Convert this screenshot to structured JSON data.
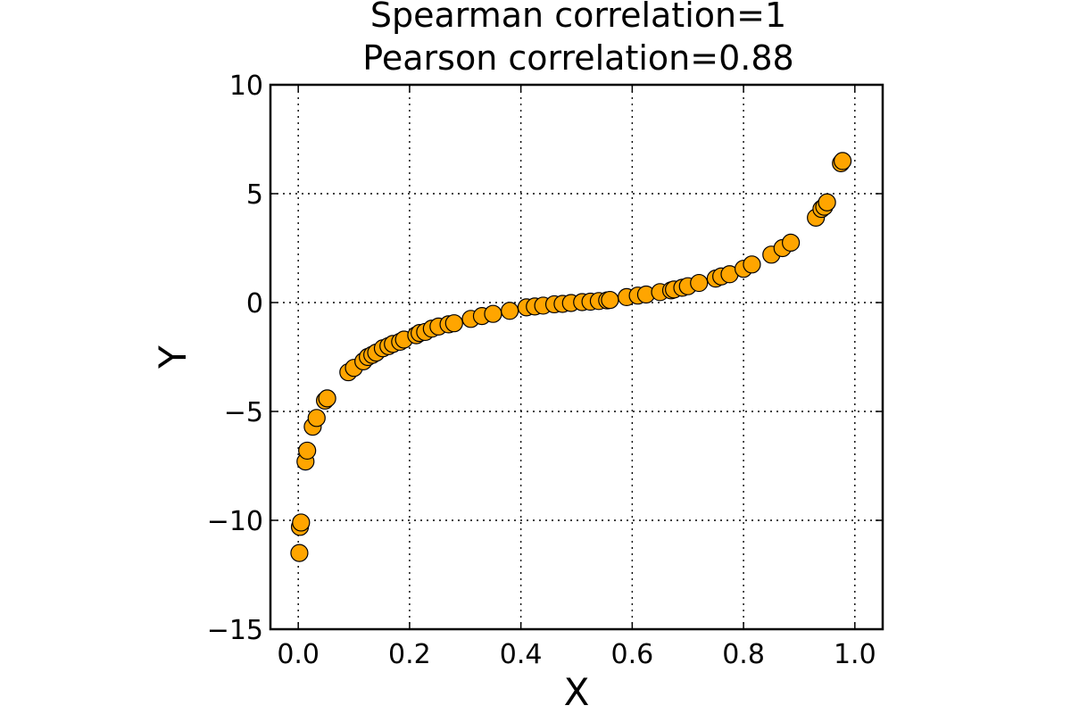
{
  "chart_data": {
    "type": "scatter",
    "title_line1": "Spearman correlation=1",
    "title_line2": "Pearson correlation=0.88",
    "xlabel": "X",
    "ylabel": "Y",
    "xlim": [
      -0.05,
      1.05
    ],
    "ylim": [
      -15,
      10
    ],
    "xticks": [
      0.0,
      0.2,
      0.4,
      0.6,
      0.8,
      1.0
    ],
    "xtick_labels": [
      "0.0",
      "0.2",
      "0.4",
      "0.6",
      "0.8",
      "1.0"
    ],
    "yticks": [
      10,
      5,
      0,
      -5,
      -10,
      -15
    ],
    "ytick_labels": [
      "10",
      "5",
      "0",
      "−5",
      "−10",
      "−15"
    ],
    "grid": true,
    "marker_color": "#ffa500",
    "edge_color": "#000000",
    "x": [
      0.002,
      0.003,
      0.005,
      0.013,
      0.016,
      0.026,
      0.033,
      0.048,
      0.052,
      0.09,
      0.1,
      0.117,
      0.125,
      0.133,
      0.14,
      0.152,
      0.162,
      0.17,
      0.183,
      0.19,
      0.212,
      0.218,
      0.228,
      0.24,
      0.252,
      0.27,
      0.28,
      0.31,
      0.33,
      0.35,
      0.38,
      0.41,
      0.425,
      0.44,
      0.46,
      0.475,
      0.49,
      0.51,
      0.525,
      0.54,
      0.555,
      0.56,
      0.59,
      0.61,
      0.625,
      0.65,
      0.67,
      0.675,
      0.69,
      0.7,
      0.72,
      0.75,
      0.76,
      0.775,
      0.8,
      0.815,
      0.85,
      0.87,
      0.885,
      0.93,
      0.94,
      0.945,
      0.95,
      0.975,
      0.978
    ],
    "y": [
      -11.5,
      -10.3,
      -10.1,
      -7.3,
      -6.8,
      -5.7,
      -5.3,
      -4.5,
      -4.4,
      -3.2,
      -3.0,
      -2.7,
      -2.5,
      -2.4,
      -2.3,
      -2.1,
      -2.0,
      -1.9,
      -1.8,
      -1.7,
      -1.5,
      -1.4,
      -1.35,
      -1.2,
      -1.1,
      -1.0,
      -0.95,
      -0.75,
      -0.62,
      -0.52,
      -0.38,
      -0.22,
      -0.18,
      -0.14,
      -0.08,
      -0.06,
      -0.02,
      0.02,
      0.04,
      0.07,
      0.1,
      0.12,
      0.25,
      0.32,
      0.37,
      0.48,
      0.56,
      0.6,
      0.68,
      0.75,
      0.9,
      1.1,
      1.2,
      1.3,
      1.55,
      1.75,
      2.2,
      2.5,
      2.75,
      3.9,
      4.3,
      4.4,
      4.6,
      6.4,
      6.5
    ]
  }
}
